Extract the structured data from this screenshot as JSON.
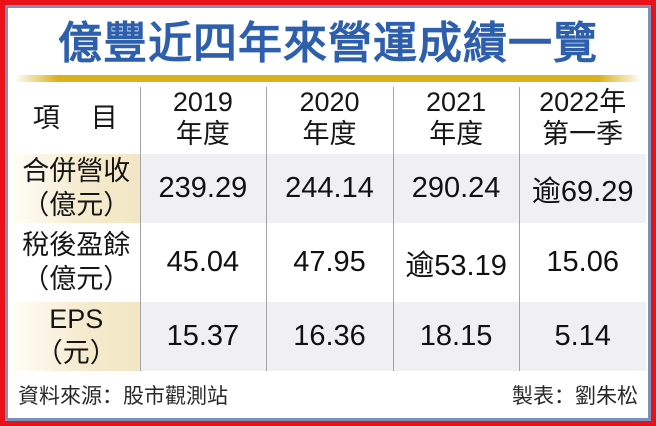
{
  "title": "億豐近四年來營運成績一覽",
  "colors": {
    "title_blue": "#2d5fad",
    "gold_line": "#d9b11c",
    "outer_border_red": "#ea1219",
    "inner_border_blue": "#7c90ba",
    "shaded_row_gray": "#f0eff2",
    "label_cream": "#f2e6c5",
    "column_divider_gray": "#a3a3a3"
  },
  "table": {
    "header": {
      "item_label": "項　目",
      "columns": [
        {
          "line1": "2019",
          "line2": "年度"
        },
        {
          "line1": "2020",
          "line2": "年度"
        },
        {
          "line1": "2021",
          "line2": "年度"
        },
        {
          "line1": "2022年",
          "line2": "第一季"
        }
      ]
    },
    "rows": [
      {
        "label_line1": "合併營收",
        "label_line2": "（億元）",
        "values": [
          "239.29",
          "244.14",
          "290.24",
          "逾69.29"
        ]
      },
      {
        "label_line1": "稅後盈餘",
        "label_line2": "（億元）",
        "values": [
          "45.04",
          "47.95",
          "逾53.19",
          "15.06"
        ]
      },
      {
        "label_line1": "EPS",
        "label_line2": "（元）",
        "values": [
          "15.37",
          "16.36",
          "18.15",
          "5.14"
        ]
      }
    ]
  },
  "footer": {
    "source": "資料來源：股市觀測站",
    "credit": "製表：劉朱松"
  },
  "chart_data": {
    "type": "table",
    "title": "億豐近四年來營運成績一覽",
    "columns": [
      "項目",
      "2019年度",
      "2020年度",
      "2021年度",
      "2022年第一季"
    ],
    "rows": [
      [
        "合併營收（億元）",
        "239.29",
        "244.14",
        "290.24",
        "逾69.29"
      ],
      [
        "稅後盈餘（億元）",
        "45.04",
        "47.95",
        "逾53.19",
        "15.06"
      ],
      [
        "EPS（元）",
        "15.37",
        "16.36",
        "18.15",
        "5.14"
      ]
    ],
    "source": "資料來源：股市觀測站",
    "credit": "製表：劉朱松"
  }
}
